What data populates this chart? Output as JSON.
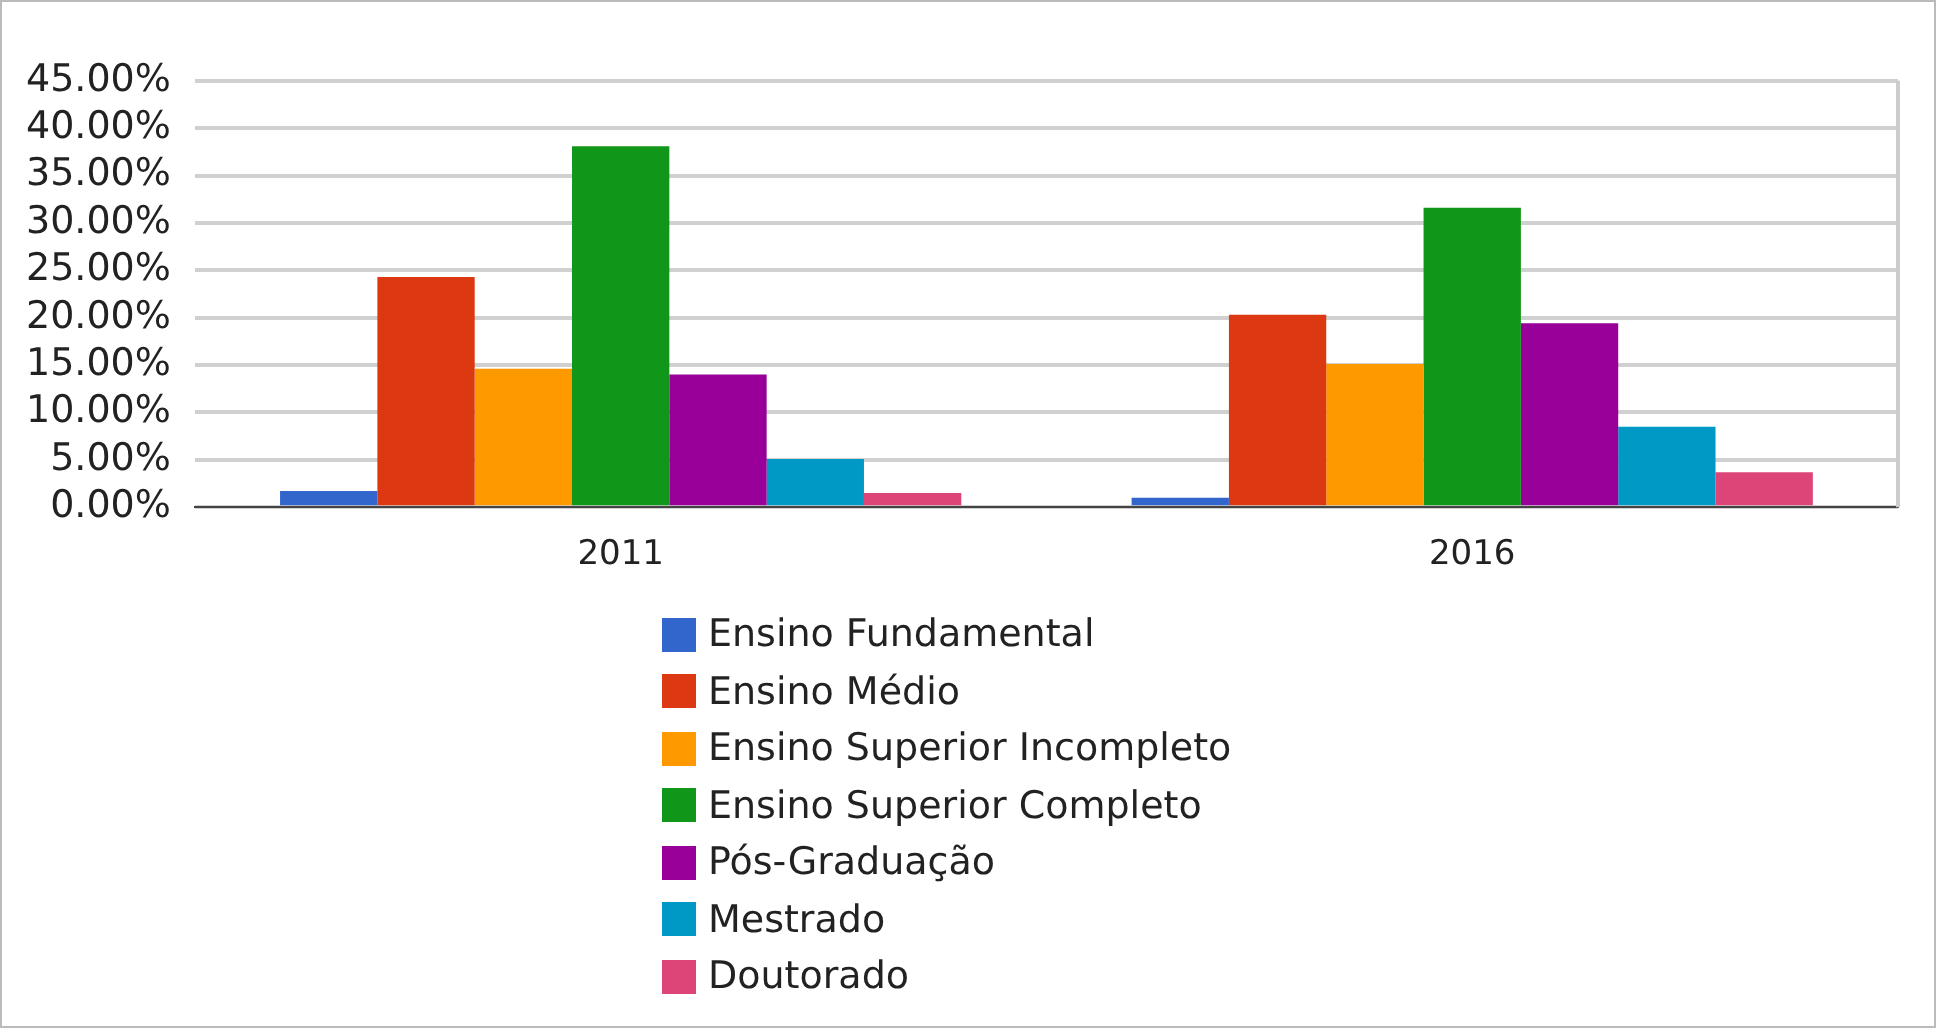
{
  "chart_data": {
    "type": "bar",
    "categories": [
      "2011",
      "2016"
    ],
    "series": [
      {
        "name": "Ensino Fundamental",
        "color": "#3366cc",
        "values": [
          1.7,
          1.0
        ]
      },
      {
        "name": "Ensino Médio",
        "color": "#dc3912",
        "values": [
          24.3,
          20.3
        ]
      },
      {
        "name": "Ensino Superior Incompleto",
        "color": "#ff9900",
        "values": [
          14.6,
          15.1
        ]
      },
      {
        "name": "Ensino Superior Completo",
        "color": "#109618",
        "values": [
          38.1,
          31.6
        ]
      },
      {
        "name": "Pós-Graduação",
        "color": "#990099",
        "values": [
          14.0,
          19.4
        ]
      },
      {
        "name": "Mestrado",
        "color": "#0099c6",
        "values": [
          5.1,
          8.5
        ]
      },
      {
        "name": "Doutorado",
        "color": "#dd4477",
        "values": [
          1.5,
          3.7
        ]
      }
    ],
    "ylim": [
      0,
      45
    ],
    "yticks": [
      {
        "value": 0,
        "label": "0.00%"
      },
      {
        "value": 5,
        "label": "5.00%"
      },
      {
        "value": 10,
        "label": "10.00%"
      },
      {
        "value": 15,
        "label": "15.00%"
      },
      {
        "value": 20,
        "label": "20.00%"
      },
      {
        "value": 25,
        "label": "25.00%"
      },
      {
        "value": 30,
        "label": "30.00%"
      },
      {
        "value": 35,
        "label": "35.00%"
      },
      {
        "value": 40,
        "label": "40.00%"
      },
      {
        "value": 45,
        "label": "45.00%"
      }
    ],
    "grid": "y",
    "legend": "bottom"
  }
}
